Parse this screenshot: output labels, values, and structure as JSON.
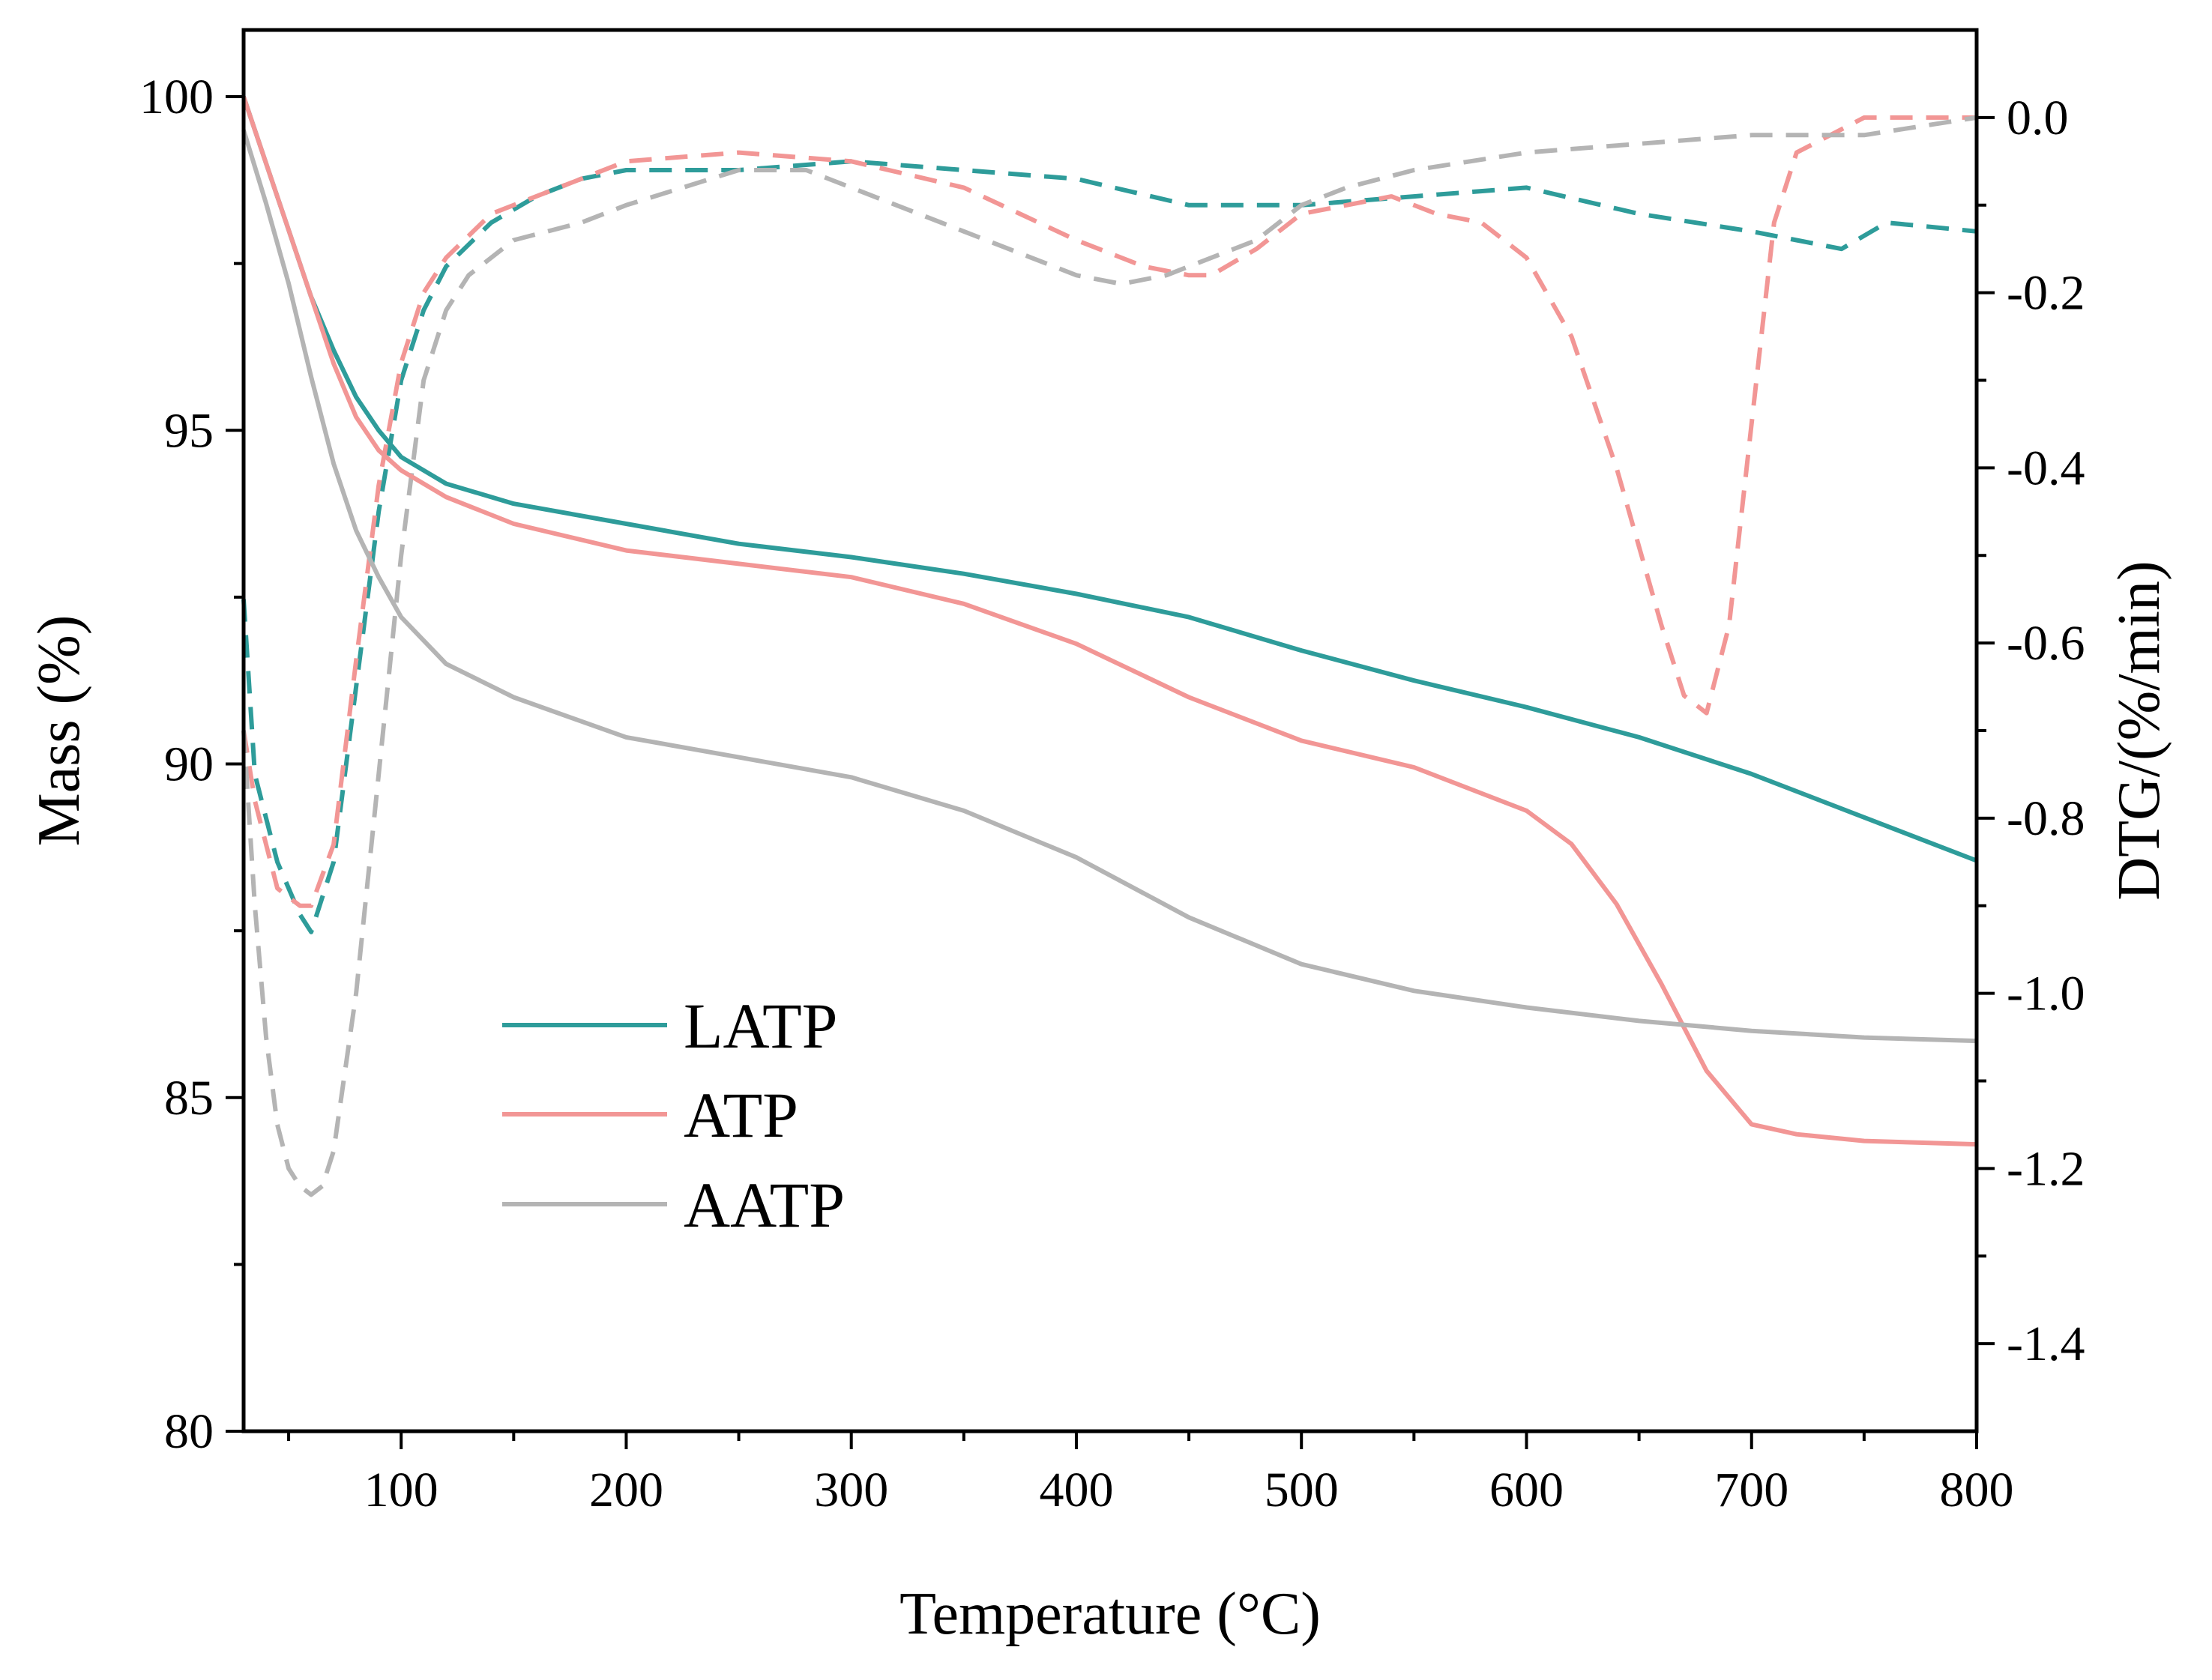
{
  "chart_data": {
    "type": "line",
    "title": "",
    "xlabel": "Temperature (°C)",
    "ylabel": "Mass (%)",
    "y2label": "DTG/(%/min)",
    "xlim": [
      30,
      800
    ],
    "ylim": [
      80,
      101
    ],
    "y2lim": [
      -1.5,
      0.1
    ],
    "x_ticks": [
      "100",
      "200",
      "300",
      "400",
      "500",
      "600",
      "700",
      "800"
    ],
    "y_ticks": [
      "80",
      "85",
      "90",
      "95",
      "100"
    ],
    "y2_ticks": [
      "0.0",
      "-0.2",
      "-0.4",
      "-0.6",
      "-0.8",
      "-1.0",
      "-1.2",
      "-1.4"
    ],
    "legend": {
      "position": "lower-left",
      "entries": [
        "LATP",
        "ATP",
        "AATP"
      ]
    },
    "series": [
      {
        "name": "LATP",
        "axis": "left",
        "style": "solid",
        "color": "#2e9c9a",
        "x": [
          30,
          40,
          50,
          60,
          70,
          80,
          90,
          100,
          120,
          150,
          200,
          250,
          300,
          350,
          400,
          450,
          500,
          550,
          600,
          650,
          700,
          750,
          800
        ],
        "y": [
          100,
          99.0,
          98.0,
          97.0,
          96.2,
          95.5,
          95.0,
          94.6,
          94.2,
          93.9,
          93.6,
          93.3,
          93.1,
          92.85,
          92.55,
          92.2,
          91.7,
          91.25,
          90.85,
          90.4,
          89.85,
          89.2,
          88.55
        ]
      },
      {
        "name": "ATP",
        "axis": "left",
        "style": "solid",
        "color": "#f29695",
        "x": [
          30,
          40,
          50,
          60,
          70,
          80,
          90,
          100,
          120,
          150,
          200,
          250,
          300,
          350,
          400,
          450,
          500,
          550,
          600,
          620,
          640,
          660,
          680,
          700,
          720,
          750,
          800
        ],
        "y": [
          100,
          99.0,
          98.0,
          97.0,
          96.0,
          95.2,
          94.7,
          94.4,
          94.0,
          93.6,
          93.2,
          93.0,
          92.8,
          92.4,
          91.8,
          91.0,
          90.35,
          89.95,
          89.3,
          88.8,
          87.9,
          86.7,
          85.4,
          84.6,
          84.45,
          84.35,
          84.3
        ]
      },
      {
        "name": "AATP",
        "axis": "left",
        "style": "solid",
        "color": "#b4b4b4",
        "x": [
          30,
          40,
          50,
          60,
          70,
          80,
          90,
          100,
          120,
          150,
          200,
          250,
          300,
          350,
          400,
          450,
          500,
          550,
          600,
          650,
          700,
          750,
          800
        ],
        "y": [
          99.5,
          98.4,
          97.2,
          95.8,
          94.5,
          93.5,
          92.8,
          92.2,
          91.5,
          91.0,
          90.4,
          90.1,
          89.8,
          89.3,
          88.6,
          87.7,
          87.0,
          86.6,
          86.35,
          86.15,
          86.0,
          85.9,
          85.85
        ]
      },
      {
        "name": "LATP DTG",
        "axis": "right",
        "style": "dashed",
        "color": "#2e9c9a",
        "x": [
          30,
          35,
          45,
          55,
          60,
          70,
          80,
          90,
          100,
          110,
          120,
          140,
          160,
          180,
          200,
          250,
          300,
          350,
          400,
          450,
          500,
          550,
          600,
          650,
          700,
          720,
          740,
          760,
          800
        ],
        "y": [
          -0.55,
          -0.75,
          -0.85,
          -0.91,
          -0.93,
          -0.85,
          -0.65,
          -0.45,
          -0.3,
          -0.22,
          -0.17,
          -0.12,
          -0.09,
          -0.07,
          -0.06,
          -0.06,
          -0.05,
          -0.06,
          -0.07,
          -0.1,
          -0.1,
          -0.09,
          -0.08,
          -0.11,
          -0.13,
          -0.14,
          -0.15,
          -0.12,
          -0.13
        ]
      },
      {
        "name": "ATP DTG",
        "axis": "right",
        "style": "dashed",
        "color": "#f29695",
        "x": [
          30,
          35,
          45,
          55,
          60,
          70,
          80,
          90,
          100,
          110,
          120,
          140,
          160,
          180,
          200,
          250,
          300,
          350,
          400,
          430,
          450,
          460,
          480,
          500,
          520,
          540,
          560,
          580,
          600,
          620,
          640,
          660,
          670,
          680,
          690,
          700,
          710,
          720,
          750,
          800
        ],
        "y": [
          -0.7,
          -0.78,
          -0.88,
          -0.9,
          -0.9,
          -0.83,
          -0.62,
          -0.42,
          -0.28,
          -0.2,
          -0.16,
          -0.11,
          -0.09,
          -0.07,
          -0.05,
          -0.04,
          -0.05,
          -0.08,
          -0.14,
          -0.17,
          -0.18,
          -0.18,
          -0.15,
          -0.11,
          -0.1,
          -0.09,
          -0.11,
          -0.12,
          -0.16,
          -0.25,
          -0.4,
          -0.58,
          -0.66,
          -0.68,
          -0.58,
          -0.35,
          -0.12,
          -0.04,
          0.0,
          0.0
        ]
      },
      {
        "name": "AATP DTG",
        "axis": "right",
        "style": "dashed",
        "color": "#b4b4b4",
        "x": [
          30,
          35,
          40,
          45,
          50,
          55,
          60,
          65,
          70,
          80,
          90,
          100,
          110,
          120,
          130,
          150,
          180,
          200,
          250,
          280,
          300,
          320,
          350,
          380,
          400,
          420,
          440,
          460,
          480,
          500,
          520,
          550,
          600,
          650,
          700,
          750,
          800
        ],
        "y": [
          -0.7,
          -0.9,
          -1.05,
          -1.15,
          -1.2,
          -1.22,
          -1.23,
          -1.22,
          -1.18,
          -1.0,
          -0.75,
          -0.5,
          -0.3,
          -0.22,
          -0.18,
          -0.14,
          -0.12,
          -0.1,
          -0.06,
          -0.06,
          -0.08,
          -0.1,
          -0.13,
          -0.16,
          -0.18,
          -0.19,
          -0.18,
          -0.16,
          -0.14,
          -0.1,
          -0.08,
          -0.06,
          -0.04,
          -0.03,
          -0.02,
          -0.02,
          0.0
        ]
      }
    ]
  }
}
